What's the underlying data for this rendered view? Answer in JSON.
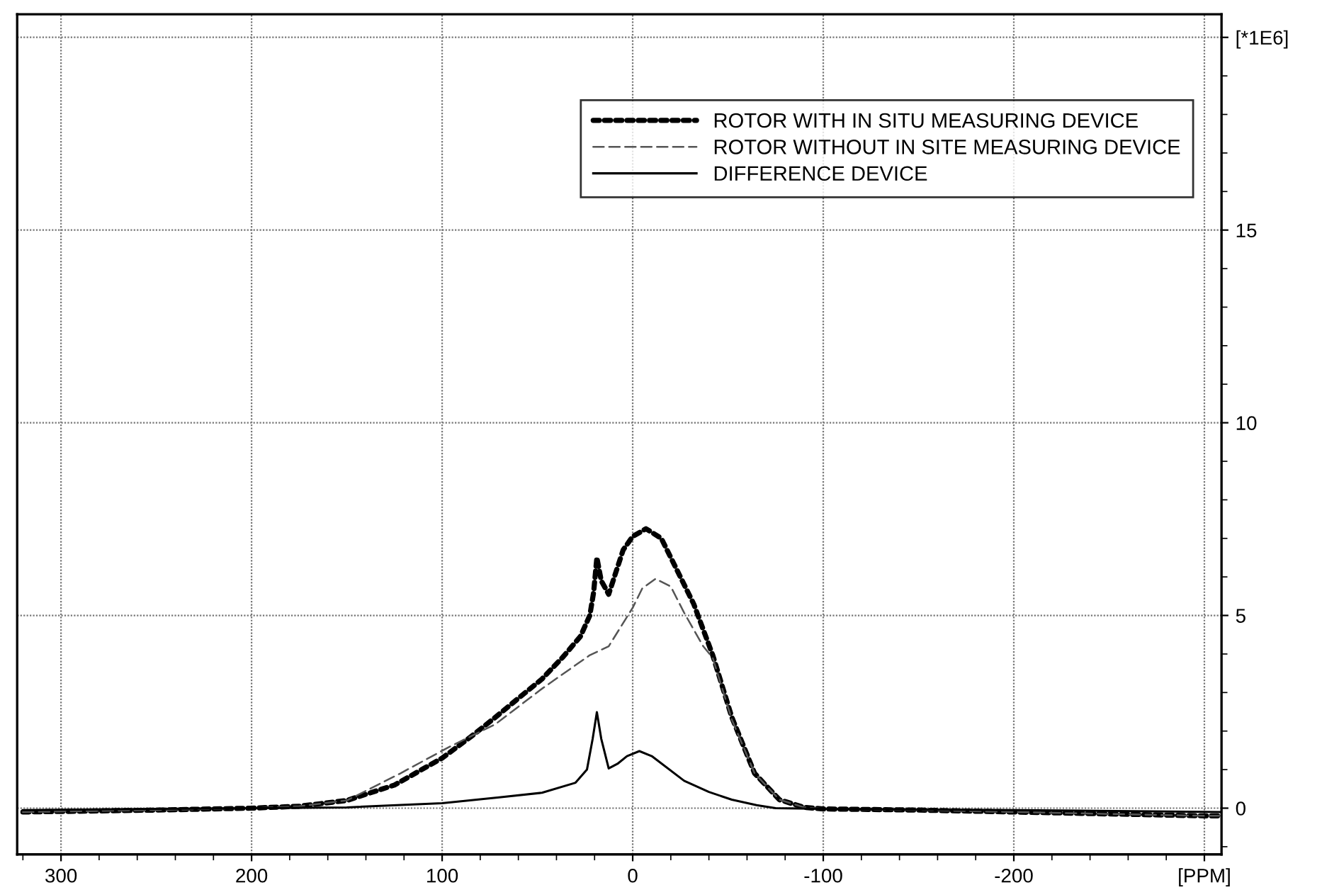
{
  "chart_data": {
    "type": "line",
    "xlim": [
      323,
      -309
    ],
    "ylim": [
      -1.2,
      20.6
    ],
    "xticks": [
      300,
      200,
      100,
      0,
      -100,
      -200,
      {
        "value": -300,
        "label": "[PPM]"
      }
    ],
    "yticks": [
      0,
      5,
      10,
      15,
      {
        "value": 20,
        "label": "[*1E6]"
      }
    ],
    "grid": true,
    "legend": "top right",
    "series": [
      {
        "name": "ROTOR WITH IN SITU MEASURING DEVICE",
        "color": "#000000",
        "line_style": "dotted",
        "x": [
          320,
          250,
          200,
          175,
          150,
          125,
          100,
          85,
          72,
          60,
          47.6,
          37,
          27.5,
          22.5,
          20.5,
          18.8,
          16.5,
          12.6,
          5,
          0,
          -7,
          -15,
          -25,
          -32,
          -42,
          -52,
          -64,
          -77,
          -90,
          -100,
          -150,
          -200,
          -250,
          -300,
          -309
        ],
        "values": [
          -0.1,
          -0.05,
          0,
          0.05,
          0.2,
          0.6,
          1.3,
          1.85,
          2.36,
          2.85,
          3.35,
          3.9,
          4.45,
          5.0,
          5.6,
          6.5,
          5.9,
          5.55,
          6.7,
          7.05,
          7.25,
          7.0,
          6.0,
          5.3,
          3.97,
          2.36,
          0.9,
          0.22,
          0.02,
          -0.02,
          -0.05,
          -0.1,
          -0.15,
          -0.2,
          -0.2
        ]
      },
      {
        "name": "ROTOR WITHOUT IN SITE MEASURING DEVICE",
        "color": "#555555",
        "line_style": "dashed",
        "x": [
          320,
          250,
          200,
          175,
          150,
          122,
          97,
          72,
          47.6,
          22.5,
          12.6,
          0,
          -5,
          -12,
          -20,
          -27,
          -37,
          -42,
          -52,
          -64,
          -77,
          -90,
          -100,
          -150,
          -200,
          -250,
          -300,
          -309
        ],
        "values": [
          -0.1,
          -0.05,
          0,
          0.05,
          0.2,
          0.9,
          1.57,
          2.18,
          3.1,
          3.97,
          4.2,
          5.2,
          5.7,
          5.95,
          5.75,
          5.07,
          4.2,
          3.9,
          2.3,
          0.9,
          0.22,
          0.02,
          -0.02,
          -0.05,
          -0.1,
          -0.15,
          -0.2,
          -0.2
        ]
      },
      {
        "name": "DIFFERENCE DEVICE",
        "color": "#000000",
        "line_style": "solid",
        "x": [
          320,
          200,
          150,
          100,
          70,
          47.6,
          30,
          24,
          21,
          18.8,
          16.5,
          12.6,
          8,
          3,
          -3.5,
          -10,
          -27,
          -40,
          -52,
          -65,
          -75,
          -100,
          -200,
          -309
        ],
        "values": [
          -0.05,
          0,
          0.02,
          0.13,
          0.28,
          0.4,
          0.66,
          1.0,
          1.8,
          2.49,
          1.8,
          1.03,
          1.15,
          1.35,
          1.48,
          1.35,
          0.71,
          0.42,
          0.22,
          0.08,
          0.0,
          -0.02,
          -0.05,
          -0.1
        ]
      }
    ]
  }
}
